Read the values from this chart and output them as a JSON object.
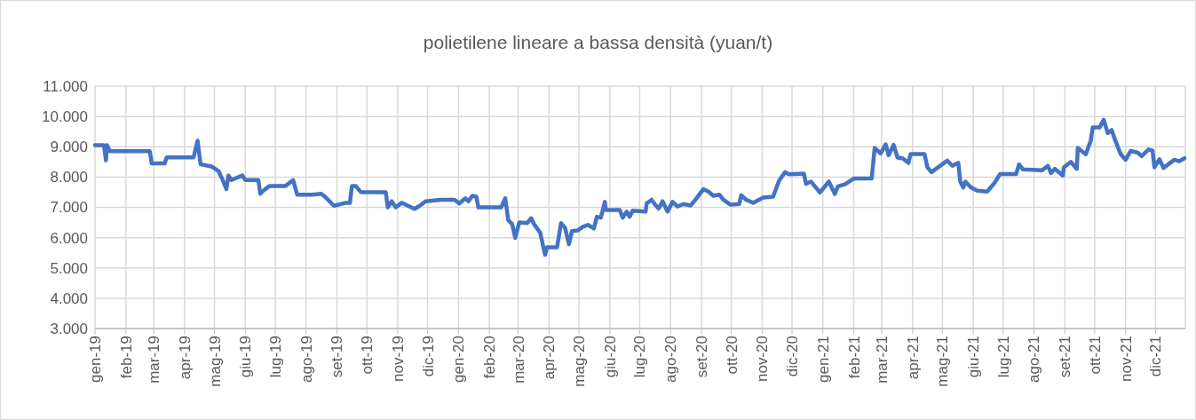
{
  "chart_data": {
    "type": "line",
    "title": "polietilene lineare a bassa densità (yuan/t)",
    "grid": true,
    "marker": "none",
    "line_style": "solid",
    "xlim": [
      "2019-01-01",
      "2021-12-31"
    ],
    "xticks": [
      {
        "value": "2019-01-01",
        "label": "gen-19"
      },
      {
        "value": "2019-02-01",
        "label": "feb-19"
      },
      {
        "value": "2019-03-01",
        "label": "mar-19"
      },
      {
        "value": "2019-04-01",
        "label": "apr-19"
      },
      {
        "value": "2019-05-01",
        "label": "mag-19"
      },
      {
        "value": "2019-06-01",
        "label": "giu-19"
      },
      {
        "value": "2019-07-01",
        "label": "lug-19"
      },
      {
        "value": "2019-08-01",
        "label": "ago-19"
      },
      {
        "value": "2019-09-01",
        "label": "set-19"
      },
      {
        "value": "2019-10-01",
        "label": "ott-19"
      },
      {
        "value": "2019-11-01",
        "label": "nov-19"
      },
      {
        "value": "2019-12-01",
        "label": "dic-19"
      },
      {
        "value": "2020-01-01",
        "label": "gen-20"
      },
      {
        "value": "2020-02-01",
        "label": "feb-20"
      },
      {
        "value": "2020-03-01",
        "label": "mar-20"
      },
      {
        "value": "2020-04-01",
        "label": "apr-20"
      },
      {
        "value": "2020-05-01",
        "label": "mag-20"
      },
      {
        "value": "2020-06-01",
        "label": "giu-20"
      },
      {
        "value": "2020-07-01",
        "label": "lug-20"
      },
      {
        "value": "2020-08-01",
        "label": "ago-20"
      },
      {
        "value": "2020-09-01",
        "label": "set-20"
      },
      {
        "value": "2020-10-01",
        "label": "ott-20"
      },
      {
        "value": "2020-11-01",
        "label": "nov-20"
      },
      {
        "value": "2020-12-01",
        "label": "dic-20"
      },
      {
        "value": "2021-01-01",
        "label": "gen-21"
      },
      {
        "value": "2021-02-01",
        "label": "feb-21"
      },
      {
        "value": "2021-03-01",
        "label": "mar-21"
      },
      {
        "value": "2021-04-01",
        "label": "apr-21"
      },
      {
        "value": "2021-05-01",
        "label": "mag-21"
      },
      {
        "value": "2021-06-01",
        "label": "giu-21"
      },
      {
        "value": "2021-07-01",
        "label": "lug-21"
      },
      {
        "value": "2021-08-01",
        "label": "ago-21"
      },
      {
        "value": "2021-09-01",
        "label": "set-21"
      },
      {
        "value": "2021-10-01",
        "label": "ott-21"
      },
      {
        "value": "2021-11-01",
        "label": "nov-21"
      },
      {
        "value": "2021-12-01",
        "label": "dic-21"
      }
    ],
    "ylim": [
      3000,
      11000
    ],
    "yticks": [
      {
        "value": 3000,
        "label": "3.000"
      },
      {
        "value": 4000,
        "label": "4.000"
      },
      {
        "value": 5000,
        "label": "5.000"
      },
      {
        "value": 6000,
        "label": "6.000"
      },
      {
        "value": 7000,
        "label": "7.000"
      },
      {
        "value": 8000,
        "label": "8.000"
      },
      {
        "value": 9000,
        "label": "9.000"
      },
      {
        "value": 10000,
        "label": "10.000"
      },
      {
        "value": 11000,
        "label": "11.000"
      }
    ],
    "series": [
      {
        "color": "#4472c4",
        "x": [
          "2019-01-01",
          "2019-01-10",
          "2019-01-12",
          "2019-01-13",
          "2019-01-16",
          "2019-02-25",
          "2019-02-27",
          "2019-03-12",
          "2019-03-14",
          "2019-04-10",
          "2019-04-14",
          "2019-04-17",
          "2019-04-28",
          "2019-05-05",
          "2019-05-09",
          "2019-05-13",
          "2019-05-15",
          "2019-05-18",
          "2019-05-29",
          "2019-06-01",
          "2019-06-14",
          "2019-06-16",
          "2019-06-19",
          "2019-06-25",
          "2019-07-11",
          "2019-07-19",
          "2019-07-23",
          "2019-08-07",
          "2019-08-16",
          "2019-08-20",
          "2019-08-29",
          "2019-09-10",
          "2019-09-14",
          "2019-09-16",
          "2019-09-20",
          "2019-09-25",
          "2019-10-20",
          "2019-10-22",
          "2019-10-26",
          "2019-10-30",
          "2019-11-05",
          "2019-11-18",
          "2019-11-23",
          "2019-11-29",
          "2019-12-14",
          "2019-12-28",
          "2020-01-02",
          "2020-01-08",
          "2020-01-11",
          "2020-01-15",
          "2020-01-19",
          "2020-01-21",
          "2020-02-13",
          "2020-02-17",
          "2020-02-20",
          "2020-02-24",
          "2020-02-27",
          "2020-03-02",
          "2020-03-10",
          "2020-03-14",
          "2020-03-17",
          "2020-03-23",
          "2020-03-28",
          "2020-03-30",
          "2020-04-09",
          "2020-04-13",
          "2020-04-17",
          "2020-04-21",
          "2020-04-24",
          "2020-04-30",
          "2020-05-05",
          "2020-05-10",
          "2020-05-16",
          "2020-05-19",
          "2020-05-23",
          "2020-05-27",
          "2020-05-28",
          "2020-06-11",
          "2020-06-14",
          "2020-06-18",
          "2020-06-21",
          "2020-06-24",
          "2020-07-07",
          "2020-07-08",
          "2020-07-13",
          "2020-07-16",
          "2020-07-20",
          "2020-07-24",
          "2020-07-29",
          "2020-08-03",
          "2020-08-08",
          "2020-08-14",
          "2020-08-21",
          "2020-08-26",
          "2020-09-03",
          "2020-09-08",
          "2020-09-13",
          "2020-09-19",
          "2020-09-23",
          "2020-09-30",
          "2020-10-09",
          "2020-10-11",
          "2020-10-16",
          "2020-10-23",
          "2020-11-02",
          "2020-11-12",
          "2020-11-18",
          "2020-11-24",
          "2020-11-28",
          "2020-12-13",
          "2020-12-15",
          "2020-12-20",
          "2020-12-26",
          "2020-12-29",
          "2021-01-07",
          "2021-01-13",
          "2021-01-16",
          "2021-01-23",
          "2021-02-01",
          "2021-02-19",
          "2021-02-22",
          "2021-02-28",
          "2021-03-05",
          "2021-03-08",
          "2021-03-13",
          "2021-03-17",
          "2021-03-22",
          "2021-03-28",
          "2021-03-30",
          "2021-04-13",
          "2021-04-16",
          "2021-04-20",
          "2021-05-06",
          "2021-05-11",
          "2021-05-17",
          "2021-05-19",
          "2021-05-22",
          "2021-05-24",
          "2021-05-30",
          "2021-06-05",
          "2021-06-15",
          "2021-06-22",
          "2021-06-28",
          "2021-07-14",
          "2021-07-17",
          "2021-07-21",
          "2021-08-09",
          "2021-08-15",
          "2021-08-18",
          "2021-08-22",
          "2021-08-30",
          "2021-08-31",
          "2021-09-07",
          "2021-09-13",
          "2021-09-14",
          "2021-09-22",
          "2021-09-27",
          "2021-09-29",
          "2021-10-06",
          "2021-10-10",
          "2021-10-14",
          "2021-10-18",
          "2021-10-21",
          "2021-10-27",
          "2021-11-01",
          "2021-11-06",
          "2021-11-13",
          "2021-11-17",
          "2021-11-24",
          "2021-11-28",
          "2021-11-30",
          "2021-12-05",
          "2021-12-09",
          "2021-12-20",
          "2021-12-25",
          "2021-12-30"
        ],
        "values": [
          9050,
          9050,
          8550,
          9050,
          8850,
          8850,
          8450,
          8450,
          8650,
          8650,
          9200,
          8420,
          8350,
          8200,
          7920,
          7600,
          8050,
          7900,
          8050,
          7900,
          7900,
          7450,
          7550,
          7700,
          7700,
          7900,
          7420,
          7420,
          7450,
          7350,
          7050,
          7150,
          7150,
          7700,
          7700,
          7500,
          7500,
          7000,
          7200,
          7000,
          7150,
          6950,
          7050,
          7200,
          7250,
          7250,
          7130,
          7300,
          7200,
          7380,
          7350,
          7000,
          7000,
          7300,
          6580,
          6440,
          5990,
          6500,
          6480,
          6640,
          6440,
          6170,
          5430,
          5680,
          5680,
          6480,
          6330,
          5780,
          6220,
          6240,
          6360,
          6420,
          6300,
          6690,
          6660,
          7180,
          6910,
          6910,
          6660,
          6860,
          6690,
          6890,
          6860,
          7130,
          7250,
          7110,
          6960,
          7200,
          6860,
          7180,
          7030,
          7110,
          7060,
          7250,
          7600,
          7520,
          7380,
          7420,
          7250,
          7090,
          7110,
          7400,
          7250,
          7150,
          7320,
          7350,
          7880,
          8160,
          8090,
          8110,
          7780,
          7850,
          7610,
          7490,
          7850,
          7440,
          7690,
          7760,
          7950,
          7950,
          8960,
          8780,
          9080,
          8720,
          9060,
          8640,
          8620,
          8470,
          8760,
          8760,
          8320,
          8160,
          8540,
          8370,
          8470,
          7850,
          7650,
          7850,
          7650,
          7550,
          7520,
          7790,
          8100,
          8100,
          8420,
          8250,
          8220,
          8370,
          8130,
          8270,
          8050,
          8320,
          8500,
          8270,
          8960,
          8750,
          9200,
          9640,
          9640,
          9890,
          9450,
          9550,
          9260,
          8760,
          8570,
          8860,
          8810,
          8690,
          8910,
          8880,
          8320,
          8590,
          8300,
          8570,
          8520,
          8620
        ]
      }
    ]
  }
}
